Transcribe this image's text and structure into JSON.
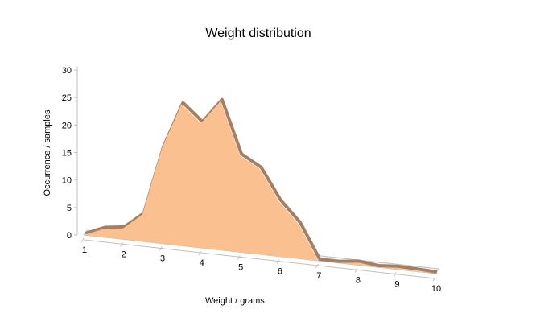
{
  "chart_data": {
    "type": "area",
    "title": "Weight distribution",
    "xlabel": "Weight / grams",
    "ylabel": "Occurrence / samples",
    "x": [
      1.0,
      1.5,
      2.0,
      2.5,
      3.0,
      3.5,
      4.0,
      4.5,
      5.0,
      5.5,
      6.0,
      6.5,
      7.0,
      7.5,
      8.0,
      8.5,
      9.0,
      9.5,
      10.0
    ],
    "values": [
      0,
      1.5,
      2,
      5,
      18,
      27,
      24,
      29,
      19,
      17,
      11,
      7,
      0,
      0,
      0.5,
      0,
      0.3,
      0.2,
      0
    ],
    "xticks": [
      "1",
      "2",
      "3",
      "4",
      "5",
      "6",
      "7",
      "8",
      "9",
      "10"
    ],
    "yticks": [
      "0",
      "5",
      "10",
      "15",
      "20",
      "25",
      "30"
    ],
    "ylim": [
      0,
      30
    ],
    "xlim": [
      1,
      10
    ],
    "grid": false,
    "legend": "none",
    "fill_color": "#FAC090",
    "edge_color": "#A67F62"
  }
}
